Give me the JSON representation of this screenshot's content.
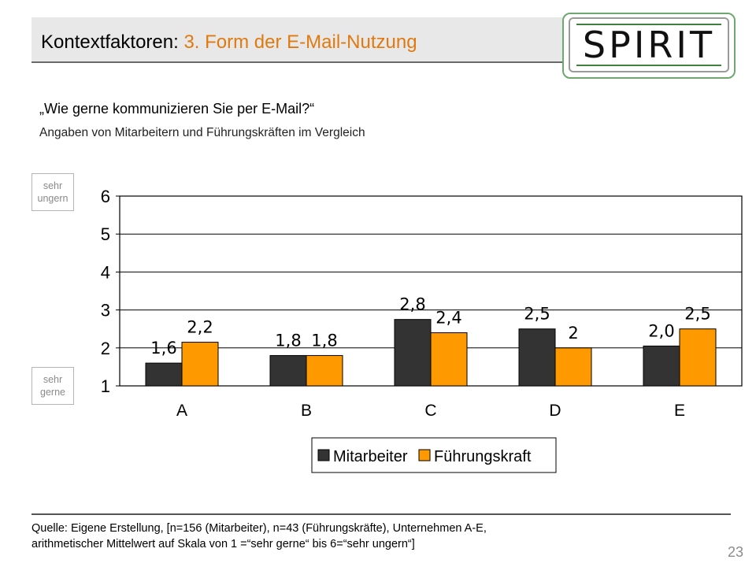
{
  "header": {
    "title_prefix": "Kontextfaktoren: ",
    "title_accent": "3. Form der E-Mail-Nutzung"
  },
  "logo": {
    "text": "SPIRIT"
  },
  "question": "„Wie gerne kommunizieren Sie per E-Mail?“",
  "subtitle": "Angaben von Mitarbeitern und Führungskräften im Vergleich",
  "scale_labels": {
    "top": [
      "sehr",
      "ungern"
    ],
    "bottom": [
      "sehr",
      "gerne"
    ]
  },
  "colors": {
    "series_1": "#333333",
    "series_2": "#ff9900",
    "accent": "#e07a10"
  },
  "chart_data": {
    "type": "bar",
    "title": "",
    "xlabel": "",
    "ylabel": "",
    "categories": [
      "A",
      "B",
      "C",
      "D",
      "E"
    ],
    "series": [
      {
        "name": "Mitarbeiter",
        "values": [
          1.6,
          1.8,
          2.75,
          2.5,
          2.05
        ],
        "labels": [
          "1,6",
          "1,8",
          "2,8",
          "2,5",
          "2,0"
        ]
      },
      {
        "name": "Führungskraft",
        "values": [
          2.15,
          1.8,
          2.4,
          2.0,
          2.5
        ],
        "labels": [
          "2,2",
          "1,8",
          "2,4",
          "2",
          "2,5"
        ]
      }
    ],
    "ylim": [
      1,
      6
    ],
    "yticks": [
      "1",
      "2",
      "3",
      "4",
      "5",
      "6"
    ],
    "grid": true,
    "legend_position": "bottom"
  },
  "footer": {
    "line1": "Quelle: Eigene Erstellung, [n=156 (Mitarbeiter), n=43 (Führungskräfte), Unternehmen A-E,",
    "line2": "arithmetischer Mittelwert auf Skala von 1 =“sehr gerne“ bis 6=“sehr ungern“]"
  },
  "page_number": "23"
}
